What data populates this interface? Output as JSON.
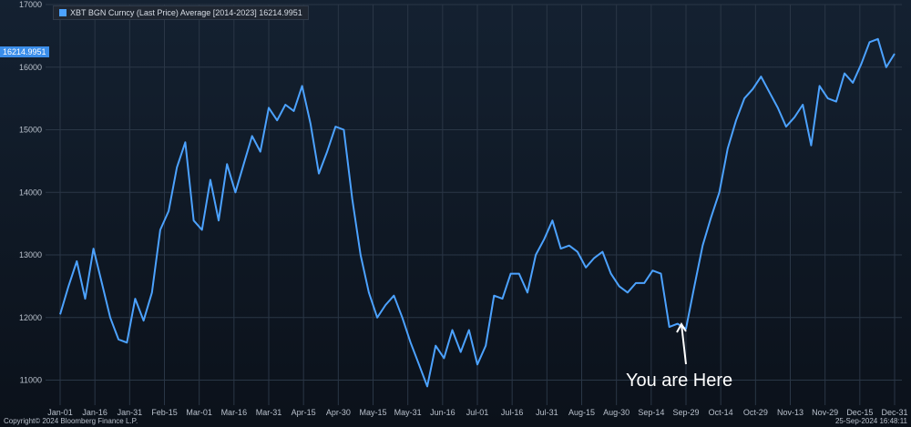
{
  "legend": {
    "label": "XBT BGN Curncy (Last Price) Average [2014-2023]  16214.9951",
    "color": "#4ca2ff"
  },
  "last_value_badge": "16214.9951",
  "annotation": "You are Here",
  "footer": {
    "copyright": "Copyright© 2024 Bloomberg Finance L.P.",
    "timestamp": "25-Sep-2024 16:48:11"
  },
  "chart_data": {
    "type": "line",
    "title": "",
    "xlabel": "",
    "ylabel": "",
    "ylim": [
      10600,
      17000
    ],
    "y_ticks": [
      11000,
      12000,
      13000,
      14000,
      15000,
      16000,
      17000
    ],
    "x_tick_labels": [
      "Jan-01",
      "Jan-16",
      "Jan-31",
      "Feb-15",
      "Mar-01",
      "Mar-16",
      "Mar-31",
      "Apr-15",
      "Apr-30",
      "May-15",
      "May-31",
      "Jun-16",
      "Jul-01",
      "Jul-16",
      "Jul-31",
      "Aug-15",
      "Aug-30",
      "Sep-14",
      "Sep-29",
      "Oct-14",
      "Oct-29",
      "Nov-13",
      "Nov-29",
      "Dec-15",
      "Dec-31"
    ],
    "series": [
      {
        "name": "XBT BGN Curncy (Last Price) Average [2014-2023]",
        "color": "#4ca2ff",
        "values": [
          12050,
          12500,
          12900,
          12300,
          13100,
          12550,
          12000,
          11650,
          11600,
          12300,
          11950,
          12400,
          13400,
          13700,
          14400,
          14800,
          13550,
          13400,
          14200,
          13550,
          14450,
          14000,
          14450,
          14900,
          14650,
          15350,
          15150,
          15400,
          15300,
          15700,
          15100,
          14300,
          14650,
          15050,
          15000,
          13900,
          13000,
          12400,
          12000,
          12200,
          12350,
          12000,
          11600,
          11250,
          10900,
          11550,
          11350,
          11800,
          11450,
          11800,
          11250,
          11550,
          12350,
          12300,
          12700,
          12700,
          12400,
          13000,
          13250,
          13550,
          13100,
          13150,
          13050,
          12800,
          12950,
          13050,
          12700,
          12500,
          12400,
          12550,
          12550,
          12750,
          12700,
          11850,
          11900,
          11820,
          12500,
          13150,
          13600,
          14000,
          14700,
          15150,
          15500,
          15650,
          15850,
          15600,
          15350,
          15050,
          15200,
          15400,
          14750,
          15700,
          15500,
          15450,
          15900,
          15750,
          16050,
          16400,
          16450,
          16000,
          16214
        ]
      }
    ]
  }
}
